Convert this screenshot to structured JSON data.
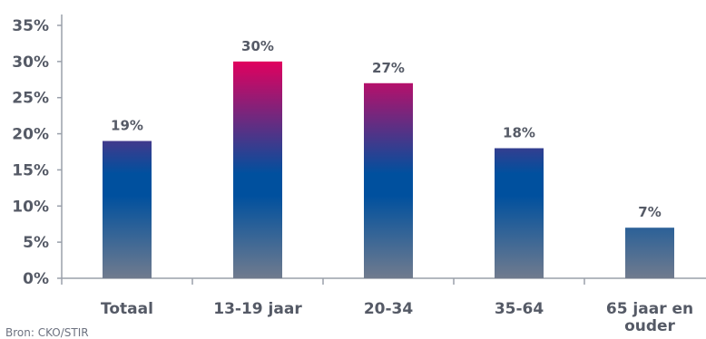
{
  "chart_data": {
    "type": "bar",
    "categories": [
      "Totaal",
      "13-19 jaar",
      "20-34",
      "35-64",
      "65 jaar en ouder"
    ],
    "category_lines": [
      [
        "Totaal"
      ],
      [
        "13-19 jaar"
      ],
      [
        "20-34"
      ],
      [
        "35-64"
      ],
      [
        "65 jaar en",
        "ouder"
      ]
    ],
    "values": [
      19,
      30,
      27,
      18,
      7
    ],
    "value_labels": [
      "19%",
      "30%",
      "27%",
      "18%",
      "7%"
    ],
    "yticks": [
      "0%",
      "5%",
      "10%",
      "15%",
      "20%",
      "25%",
      "30%",
      "35%"
    ],
    "ylim": [
      0,
      35
    ],
    "y_unit": "%",
    "grid": false,
    "title": "",
    "xlabel": "",
    "ylabel": ""
  },
  "source": "Bron: CKO/STIR",
  "colors": {
    "bar_top": "#e2005e",
    "bar_mid": "#00509e",
    "bar_bottom": "#707b8e",
    "axis": "#9aa0aa",
    "text": "#555a66"
  }
}
